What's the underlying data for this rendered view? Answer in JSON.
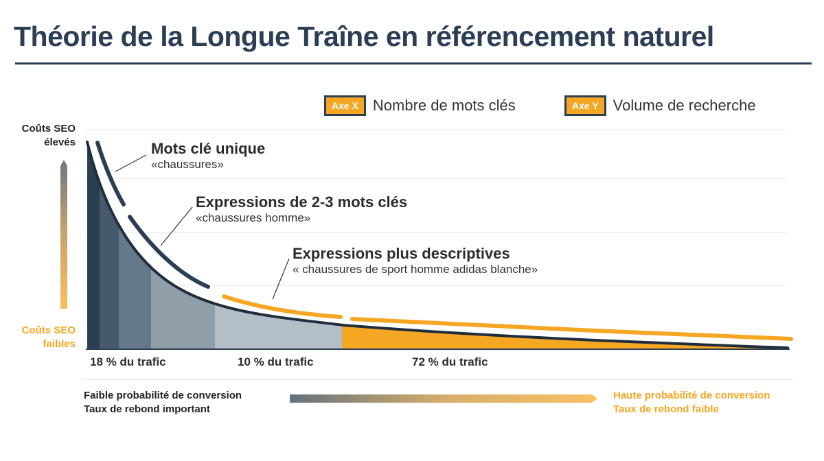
{
  "title": "Théorie de la Longue Traîne en référencement naturel",
  "legend": [
    {
      "badge": "Axe X",
      "label": "Nombre de mots clés"
    },
    {
      "badge": "Axe Y",
      "label": "Volume de recherche"
    }
  ],
  "y_axis": {
    "top_label": "Coûts SEO élevés",
    "bottom_label": "Coûts SEO faibles"
  },
  "segments": [
    {
      "heading": "Mots clé unique",
      "example": "«chaussures»"
    },
    {
      "heading": "Expressions de 2-3 mots clés",
      "example": "«chaussures homme»"
    },
    {
      "heading": "Expressions plus descriptives",
      "example": "« chaussures de sport homme adidas blanche»"
    }
  ],
  "traffic": [
    "18 % du trafic",
    "10 % du trafic",
    "72 % du trafic"
  ],
  "footer": {
    "left": [
      "Faible probabilité de conversion",
      "Taux de rebond important"
    ],
    "right": [
      "Haute probabilité de conversion",
      "Taux de rebond faible"
    ]
  },
  "colors": {
    "navy": "#2c3e55",
    "orange": "#f5a623",
    "bands": [
      "#2c3e50",
      "#465a6c",
      "#66798a",
      "#8f9ea9",
      "#b4bec6",
      "#f5a623"
    ]
  }
}
